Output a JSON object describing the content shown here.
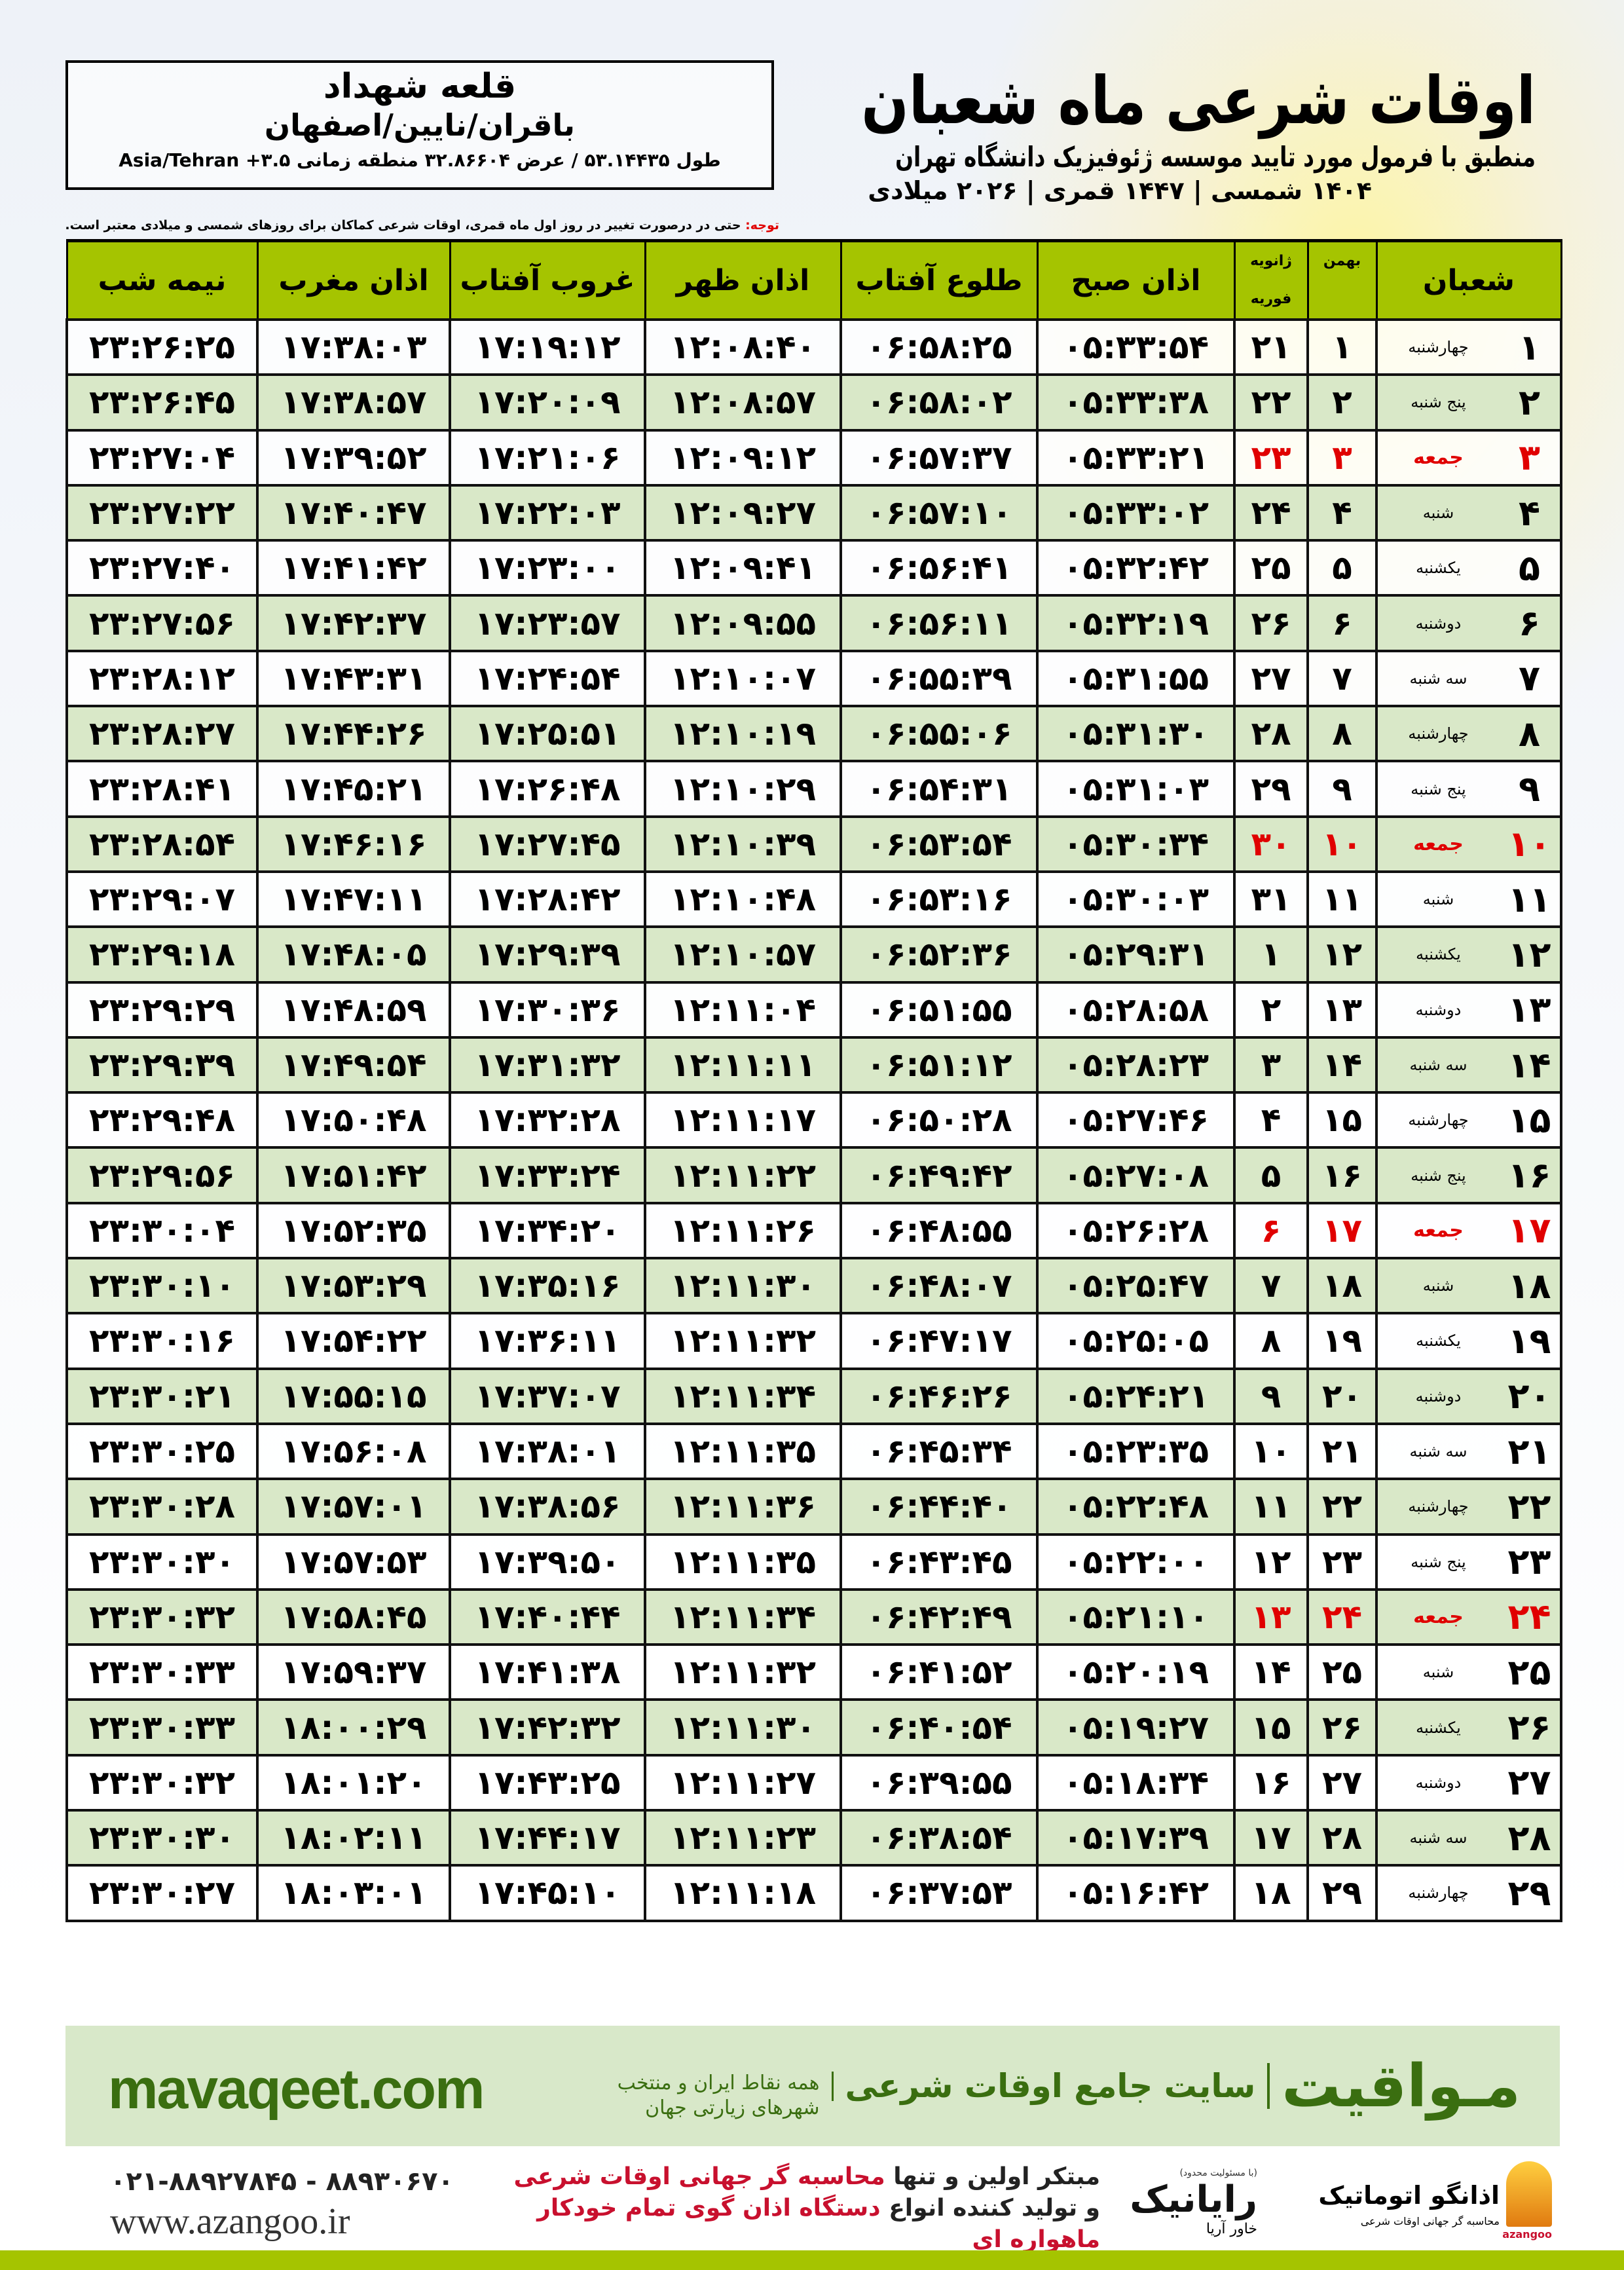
{
  "header": {
    "title": "اوقات شرعی ماه شعبان",
    "subtitle": "منطبق با فرمول مورد تایید موسسه ژئوفیزیک دانشگاه تهران",
    "years": "۱۴۰۴ شمسی | ۱۴۴۷ قمری | ۲۰۲۶ میلادی"
  },
  "location": {
    "city": "قلعه شهداد",
    "region": "باقران/نایین/اصفهان",
    "coords": "طول ۵۳.۱۴۴۳۵ / عرض ۳۲.۸۶۶۰۴ منطقه زمانی ۳.۵+ Asia/Tehran"
  },
  "note": {
    "label": "توجه:",
    "text": " حتی در درصورت تغییر در روز اول ماه قمری، اوقات شرعی کماکان برای روزهای شمسی و میلادی معتبر است."
  },
  "table": {
    "columns": {
      "shaban": "شعبان",
      "bahman": "بهمن",
      "gregorian_top": "ژانویه",
      "gregorian_bottom": "فوریه",
      "sobh": "اذان صبح",
      "tolu": "طلوع آفتاب",
      "zohr": "اذان ظهر",
      "ghorub": "غروب آفتاب",
      "maghrib": "اذان مغرب",
      "nimeshab": "نیمه شب"
    },
    "holiday_color": "#e00000",
    "header_color": "#a5c400",
    "rows": [
      [
        "۱",
        "چهارشنبه",
        "۱",
        "۲۱",
        "۰۵:۳۳:۵۴",
        "۰۶:۵۸:۲۵",
        "۱۲:۰۸:۴۰",
        "۱۷:۱۹:۱۲",
        "۱۷:۳۸:۰۳",
        "۲۳:۲۶:۲۵"
      ],
      [
        "۲",
        "پنج شنبه",
        "۲",
        "۲۲",
        "۰۵:۳۳:۳۸",
        "۰۶:۵۸:۰۲",
        "۱۲:۰۸:۵۷",
        "۱۷:۲۰:۰۹",
        "۱۷:۳۸:۵۷",
        "۲۳:۲۶:۴۵"
      ],
      [
        "۳",
        "جمعه",
        "۳",
        "۲۳",
        "۰۵:۳۳:۲۱",
        "۰۶:۵۷:۳۷",
        "۱۲:۰۹:۱۲",
        "۱۷:۲۱:۰۶",
        "۱۷:۳۹:۵۲",
        "۲۳:۲۷:۰۴"
      ],
      [
        "۴",
        "شنبه",
        "۴",
        "۲۴",
        "۰۵:۳۳:۰۲",
        "۰۶:۵۷:۱۰",
        "۱۲:۰۹:۲۷",
        "۱۷:۲۲:۰۳",
        "۱۷:۴۰:۴۷",
        "۲۳:۲۷:۲۲"
      ],
      [
        "۵",
        "یکشنبه",
        "۵",
        "۲۵",
        "۰۵:۳۲:۴۲",
        "۰۶:۵۶:۴۱",
        "۱۲:۰۹:۴۱",
        "۱۷:۲۳:۰۰",
        "۱۷:۴۱:۴۲",
        "۲۳:۲۷:۴۰"
      ],
      [
        "۶",
        "دوشنبه",
        "۶",
        "۲۶",
        "۰۵:۳۲:۱۹",
        "۰۶:۵۶:۱۱",
        "۱۲:۰۹:۵۵",
        "۱۷:۲۳:۵۷",
        "۱۷:۴۲:۳۷",
        "۲۳:۲۷:۵۶"
      ],
      [
        "۷",
        "سه شنبه",
        "۷",
        "۲۷",
        "۰۵:۳۱:۵۵",
        "۰۶:۵۵:۳۹",
        "۱۲:۱۰:۰۷",
        "۱۷:۲۴:۵۴",
        "۱۷:۴۳:۳۱",
        "۲۳:۲۸:۱۲"
      ],
      [
        "۸",
        "چهارشنبه",
        "۸",
        "۲۸",
        "۰۵:۳۱:۳۰",
        "۰۶:۵۵:۰۶",
        "۱۲:۱۰:۱۹",
        "۱۷:۲۵:۵۱",
        "۱۷:۴۴:۲۶",
        "۲۳:۲۸:۲۷"
      ],
      [
        "۹",
        "پنج شنبه",
        "۹",
        "۲۹",
        "۰۵:۳۱:۰۳",
        "۰۶:۵۴:۳۱",
        "۱۲:۱۰:۲۹",
        "۱۷:۲۶:۴۸",
        "۱۷:۴۵:۲۱",
        "۲۳:۲۸:۴۱"
      ],
      [
        "۱۰",
        "جمعه",
        "۱۰",
        "۳۰",
        "۰۵:۳۰:۳۴",
        "۰۶:۵۳:۵۴",
        "۱۲:۱۰:۳۹",
        "۱۷:۲۷:۴۵",
        "۱۷:۴۶:۱۶",
        "۲۳:۲۸:۵۴"
      ],
      [
        "۱۱",
        "شنبه",
        "۱۱",
        "۳۱",
        "۰۵:۳۰:۰۳",
        "۰۶:۵۳:۱۶",
        "۱۲:۱۰:۴۸",
        "۱۷:۲۸:۴۲",
        "۱۷:۴۷:۱۱",
        "۲۳:۲۹:۰۷"
      ],
      [
        "۱۲",
        "یکشنبه",
        "۱۲",
        "۱",
        "۰۵:۲۹:۳۱",
        "۰۶:۵۲:۳۶",
        "۱۲:۱۰:۵۷",
        "۱۷:۲۹:۳۹",
        "۱۷:۴۸:۰۵",
        "۲۳:۲۹:۱۸"
      ],
      [
        "۱۳",
        "دوشنبه",
        "۱۳",
        "۲",
        "۰۵:۲۸:۵۸",
        "۰۶:۵۱:۵۵",
        "۱۲:۱۱:۰۴",
        "۱۷:۳۰:۳۶",
        "۱۷:۴۸:۵۹",
        "۲۳:۲۹:۲۹"
      ],
      [
        "۱۴",
        "سه شنبه",
        "۱۴",
        "۳",
        "۰۵:۲۸:۲۳",
        "۰۶:۵۱:۱۲",
        "۱۲:۱۱:۱۱",
        "۱۷:۳۱:۳۲",
        "۱۷:۴۹:۵۴",
        "۲۳:۲۹:۳۹"
      ],
      [
        "۱۵",
        "چهارشنبه",
        "۱۵",
        "۴",
        "۰۵:۲۷:۴۶",
        "۰۶:۵۰:۲۸",
        "۱۲:۱۱:۱۷",
        "۱۷:۳۲:۲۸",
        "۱۷:۵۰:۴۸",
        "۲۳:۲۹:۴۸"
      ],
      [
        "۱۶",
        "پنج شنبه",
        "۱۶",
        "۵",
        "۰۵:۲۷:۰۸",
        "۰۶:۴۹:۴۲",
        "۱۲:۱۱:۲۲",
        "۱۷:۳۳:۲۴",
        "۱۷:۵۱:۴۲",
        "۲۳:۲۹:۵۶"
      ],
      [
        "۱۷",
        "جمعه",
        "۱۷",
        "۶",
        "۰۵:۲۶:۲۸",
        "۰۶:۴۸:۵۵",
        "۱۲:۱۱:۲۶",
        "۱۷:۳۴:۲۰",
        "۱۷:۵۲:۳۵",
        "۲۳:۳۰:۰۴"
      ],
      [
        "۱۸",
        "شنبه",
        "۱۸",
        "۷",
        "۰۵:۲۵:۴۷",
        "۰۶:۴۸:۰۷",
        "۱۲:۱۱:۳۰",
        "۱۷:۳۵:۱۶",
        "۱۷:۵۳:۲۹",
        "۲۳:۳۰:۱۰"
      ],
      [
        "۱۹",
        "یکشنبه",
        "۱۹",
        "۸",
        "۰۵:۲۵:۰۵",
        "۰۶:۴۷:۱۷",
        "۱۲:۱۱:۳۲",
        "۱۷:۳۶:۱۱",
        "۱۷:۵۴:۲۲",
        "۲۳:۳۰:۱۶"
      ],
      [
        "۲۰",
        "دوشنبه",
        "۲۰",
        "۹",
        "۰۵:۲۴:۲۱",
        "۰۶:۴۶:۲۶",
        "۱۲:۱۱:۳۴",
        "۱۷:۳۷:۰۷",
        "۱۷:۵۵:۱۵",
        "۲۳:۳۰:۲۱"
      ],
      [
        "۲۱",
        "سه شنبه",
        "۲۱",
        "۱۰",
        "۰۵:۲۳:۳۵",
        "۰۶:۴۵:۳۴",
        "۱۲:۱۱:۳۵",
        "۱۷:۳۸:۰۱",
        "۱۷:۵۶:۰۸",
        "۲۳:۳۰:۲۵"
      ],
      [
        "۲۲",
        "چهارشنبه",
        "۲۲",
        "۱۱",
        "۰۵:۲۲:۴۸",
        "۰۶:۴۴:۴۰",
        "۱۲:۱۱:۳۶",
        "۱۷:۳۸:۵۶",
        "۱۷:۵۷:۰۱",
        "۲۳:۳۰:۲۸"
      ],
      [
        "۲۳",
        "پنج شنبه",
        "۲۳",
        "۱۲",
        "۰۵:۲۲:۰۰",
        "۰۶:۴۳:۴۵",
        "۱۲:۱۱:۳۵",
        "۱۷:۳۹:۵۰",
        "۱۷:۵۷:۵۳",
        "۲۳:۳۰:۳۰"
      ],
      [
        "۲۴",
        "جمعه",
        "۲۴",
        "۱۳",
        "۰۵:۲۱:۱۰",
        "۰۶:۴۲:۴۹",
        "۱۲:۱۱:۳۴",
        "۱۷:۴۰:۴۴",
        "۱۷:۵۸:۴۵",
        "۲۳:۳۰:۳۲"
      ],
      [
        "۲۵",
        "شنبه",
        "۲۵",
        "۱۴",
        "۰۵:۲۰:۱۹",
        "۰۶:۴۱:۵۲",
        "۱۲:۱۱:۳۲",
        "۱۷:۴۱:۳۸",
        "۱۷:۵۹:۳۷",
        "۲۳:۳۰:۳۳"
      ],
      [
        "۲۶",
        "یکشنبه",
        "۲۶",
        "۱۵",
        "۰۵:۱۹:۲۷",
        "۰۶:۴۰:۵۴",
        "۱۲:۱۱:۳۰",
        "۱۷:۴۲:۳۲",
        "۱۸:۰۰:۲۹",
        "۲۳:۳۰:۳۳"
      ],
      [
        "۲۷",
        "دوشنبه",
        "۲۷",
        "۱۶",
        "۰۵:۱۸:۳۴",
        "۰۶:۳۹:۵۵",
        "۱۲:۱۱:۲۷",
        "۱۷:۴۳:۲۵",
        "۱۸:۰۱:۲۰",
        "۲۳:۳۰:۳۲"
      ],
      [
        "۲۸",
        "سه شنبه",
        "۲۸",
        "۱۷",
        "۰۵:۱۷:۳۹",
        "۰۶:۳۸:۵۴",
        "۱۲:۱۱:۲۳",
        "۱۷:۴۴:۱۷",
        "۱۸:۰۲:۱۱",
        "۲۳:۳۰:۳۰"
      ],
      [
        "۲۹",
        "چهارشنبه",
        "۲۹",
        "۱۸",
        "۰۵:۱۶:۴۲",
        "۰۶:۳۷:۵۳",
        "۱۲:۱۱:۱۸",
        "۱۷:۴۵:۱۰",
        "۱۸:۰۳:۰۱",
        "۲۳:۳۰:۲۷"
      ]
    ]
  },
  "banner": {
    "brand": "مـواقیت",
    "tagline": "سایت جامع اوقات شرعی",
    "tagline_small": "همه نقاط ایران و منتخب شهرهای زیارتی جهان",
    "site": "mavaqeet.com",
    "color": "#3a6e10"
  },
  "footer": {
    "phones": "۰۲۱-۸۸۹۲۷۸۴۵ - ۸۸۹۳۰۶۷۰",
    "website": "www.azangoo.ir",
    "promo1_a": "مبتکر اولین و تنها ",
    "promo1_b": "محاسبه گر جهانی اوقات شرعی",
    "promo2_a": "و تولید کننده انواع ",
    "promo2_b": "دستگاه اذان گوی تمام خودکار ماهواره ای",
    "rayanik_small": "(با مسئولیت محدود)",
    "rayanik": "رایانیک",
    "rayanik_sub": "خاور آریا",
    "azangoo_name": "اذانگو اتوماتیک",
    "azangoo_sub": "محاسبه گر جهانی اوقات شرعی",
    "azangoo_latin": "azangoo"
  }
}
